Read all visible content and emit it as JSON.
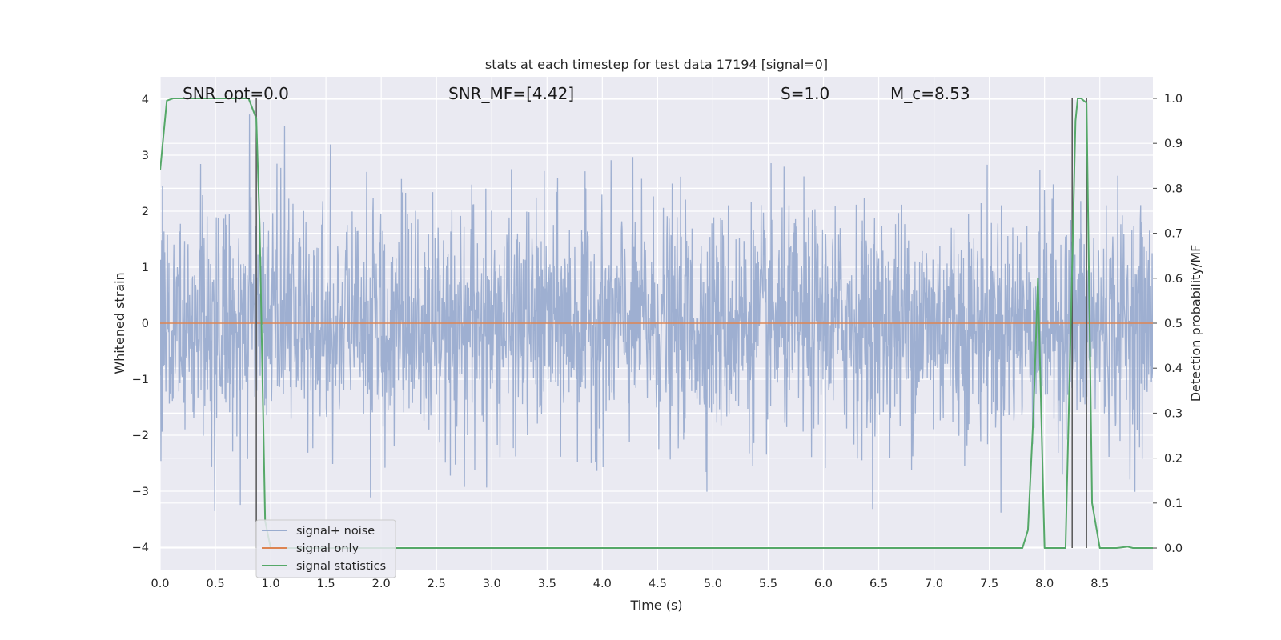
{
  "chart_data": {
    "type": "line",
    "title": "stats at each timestep for test data 17194 [signal=0]",
    "xlabel": "Time (s)",
    "ylabel_left": "Whitened strain",
    "ylabel_right": "Detection probability/MF",
    "xlim": [
      0.0,
      8.98
    ],
    "ylim_left": [
      -4.4,
      4.4
    ],
    "ylim_right": [
      -0.048,
      1.048
    ],
    "x_ticks": [
      "0.0",
      "0.5",
      "1.0",
      "1.5",
      "2.0",
      "2.5",
      "3.0",
      "3.5",
      "4.0",
      "4.5",
      "5.0",
      "5.5",
      "6.0",
      "6.5",
      "7.0",
      "7.5",
      "8.0",
      "8.5"
    ],
    "y_left_ticks": [
      "−4",
      "−3",
      "−2",
      "−1",
      "0",
      "1",
      "2",
      "3",
      "4"
    ],
    "y_right_ticks": [
      "0.0",
      "0.1",
      "0.2",
      "0.3",
      "0.4",
      "0.5",
      "0.6",
      "0.7",
      "0.8",
      "0.9",
      "1.0"
    ],
    "grid": true,
    "legend_position": "lower-left",
    "background": "#eaeaf2",
    "annotations": [
      {
        "text": "SNR_opt=0.0",
        "x": 0.2
      },
      {
        "text": "SNR_MF=[4.42]",
        "x": 2.6
      },
      {
        "text": "S=1.0",
        "x": 5.6
      },
      {
        "text": "M_c=8.53",
        "x": 6.6
      }
    ],
    "series": [
      {
        "name": "signal+ noise",
        "color": "#9aaccf",
        "axis": "left",
        "description": "whitened strain noise, approx. standard normal, spikes to about ±4",
        "samples": 8980,
        "x_range": [
          0.0,
          8.98
        ]
      },
      {
        "name": "signal only",
        "color": "#dd8452",
        "axis": "left",
        "x": [
          0.0,
          8.98
        ],
        "y": [
          0.0,
          0.0
        ]
      },
      {
        "name": "signal statistics",
        "color": "#55a868",
        "axis": "right",
        "x": [
          0.0,
          0.06,
          0.12,
          0.2,
          0.3,
          0.4,
          0.5,
          0.6,
          0.7,
          0.8,
          0.87,
          0.9,
          0.95,
          1.0,
          1.1,
          1.2,
          1.5,
          2.0,
          3.0,
          4.0,
          5.0,
          6.0,
          7.0,
          7.5,
          7.8,
          7.85,
          7.9,
          7.94,
          7.97,
          8.0,
          8.1,
          8.19,
          8.24,
          8.28,
          8.3,
          8.33,
          8.38,
          8.43,
          8.5,
          8.55,
          8.65,
          8.75,
          8.8,
          8.98
        ],
        "y": [
          0.84,
          0.995,
          1.0,
          1.0,
          1.0,
          1.0,
          1.0,
          1.0,
          1.0,
          1.0,
          0.955,
          0.72,
          0.06,
          0.0,
          0.0,
          0.0,
          0.0,
          0.0,
          0.0,
          0.0,
          0.0,
          0.0,
          0.0,
          0.0,
          0.0,
          0.04,
          0.3,
          0.6,
          0.3,
          0.0,
          0.0,
          0.0,
          0.52,
          0.95,
          1.0,
          1.0,
          0.99,
          0.1,
          0.0,
          0.0,
          0.0,
          0.003,
          0.0,
          0.0
        ]
      }
    ],
    "vertical_markers": [
      {
        "x": 0.87,
        "color": "#555555"
      },
      {
        "x": 8.25,
        "color": "#555555"
      },
      {
        "x": 8.38,
        "color": "#555555"
      }
    ]
  }
}
